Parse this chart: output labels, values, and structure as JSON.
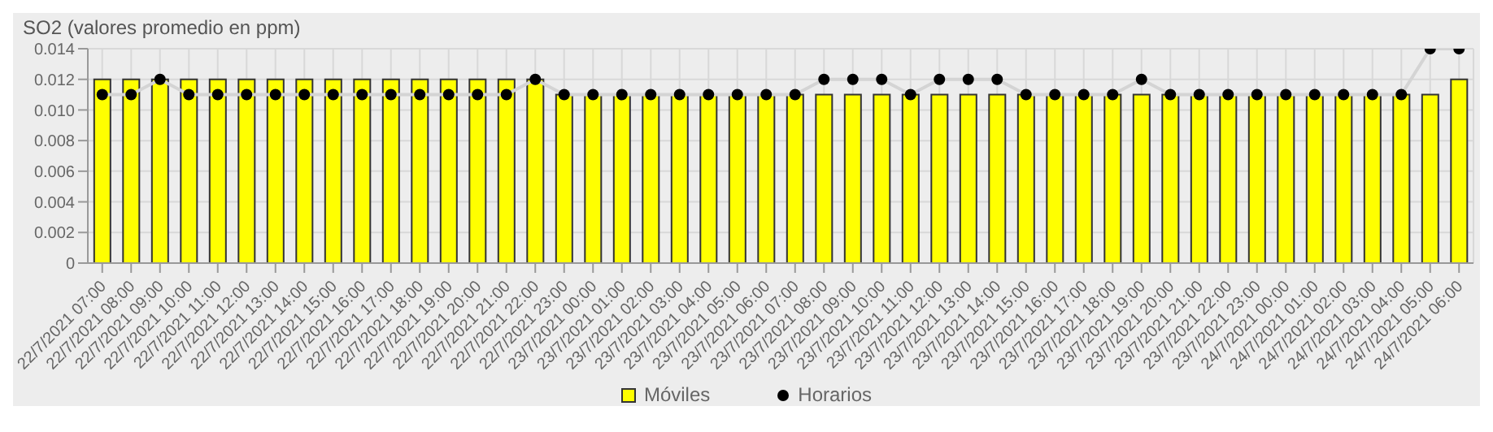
{
  "chart_data": {
    "type": "bar",
    "title": "SO2 (valores promedio en ppm)",
    "categories": [
      "22/7/2021 07:00",
      "22/7/2021 08:00",
      "22/7/2021 09:00",
      "22/7/2021 10:00",
      "22/7/2021 11:00",
      "22/7/2021 12:00",
      "22/7/2021 13:00",
      "22/7/2021 14:00",
      "22/7/2021 15:00",
      "22/7/2021 16:00",
      "22/7/2021 17:00",
      "22/7/2021 18:00",
      "22/7/2021 19:00",
      "22/7/2021 20:00",
      "22/7/2021 21:00",
      "22/7/2021 22:00",
      "22/7/2021 23:00",
      "23/7/2021 00:00",
      "23/7/2021 01:00",
      "23/7/2021 02:00",
      "23/7/2021 03:00",
      "23/7/2021 04:00",
      "23/7/2021 05:00",
      "23/7/2021 06:00",
      "23/7/2021 07:00",
      "23/7/2021 08:00",
      "23/7/2021 09:00",
      "23/7/2021 10:00",
      "23/7/2021 11:00",
      "23/7/2021 12:00",
      "23/7/2021 13:00",
      "23/7/2021 14:00",
      "23/7/2021 15:00",
      "23/7/2021 16:00",
      "23/7/2021 17:00",
      "23/7/2021 18:00",
      "23/7/2021 19:00",
      "23/7/2021 20:00",
      "23/7/2021 21:00",
      "23/7/2021 22:00",
      "23/7/2021 23:00",
      "24/7/2021 00:00",
      "24/7/2021 01:00",
      "24/7/2021 02:00",
      "24/7/2021 03:00",
      "24/7/2021 04:00",
      "24/7/2021 05:00",
      "24/7/2021 06:00"
    ],
    "series": [
      {
        "name": "Móviles",
        "color": "#ffff00",
        "values": [
          0.012,
          0.012,
          0.012,
          0.012,
          0.012,
          0.012,
          0.012,
          0.012,
          0.012,
          0.012,
          0.012,
          0.012,
          0.012,
          0.012,
          0.012,
          0.012,
          0.011,
          0.011,
          0.011,
          0.011,
          0.011,
          0.011,
          0.011,
          0.011,
          0.011,
          0.011,
          0.011,
          0.011,
          0.011,
          0.011,
          0.011,
          0.011,
          0.011,
          0.011,
          0.011,
          0.011,
          0.011,
          0.011,
          0.011,
          0.011,
          0.011,
          0.011,
          0.011,
          0.011,
          0.011,
          0.011,
          0.011,
          0.012
        ]
      },
      {
        "name": "Horarios",
        "type": "line",
        "color": "#000000",
        "values": [
          0.011,
          0.011,
          0.012,
          0.011,
          0.011,
          0.011,
          0.011,
          0.011,
          0.011,
          0.011,
          0.011,
          0.011,
          0.011,
          0.011,
          0.011,
          0.012,
          0.011,
          0.011,
          0.011,
          0.011,
          0.011,
          0.011,
          0.011,
          0.011,
          0.011,
          0.012,
          0.012,
          0.012,
          0.011,
          0.012,
          0.012,
          0.012,
          0.011,
          0.011,
          0.011,
          0.011,
          0.012,
          0.011,
          0.011,
          0.011,
          0.011,
          0.011,
          0.011,
          0.011,
          0.011,
          0.011,
          0.014,
          0.014
        ]
      }
    ],
    "ylim": [
      0,
      0.014
    ],
    "yticks": [
      0,
      0.002,
      0.004,
      0.006,
      0.008,
      {
        "value": 0.01,
        "label": "0.010"
      },
      0.012,
      0.014
    ],
    "grid": true,
    "legend": "bottom",
    "marker": "circle"
  }
}
